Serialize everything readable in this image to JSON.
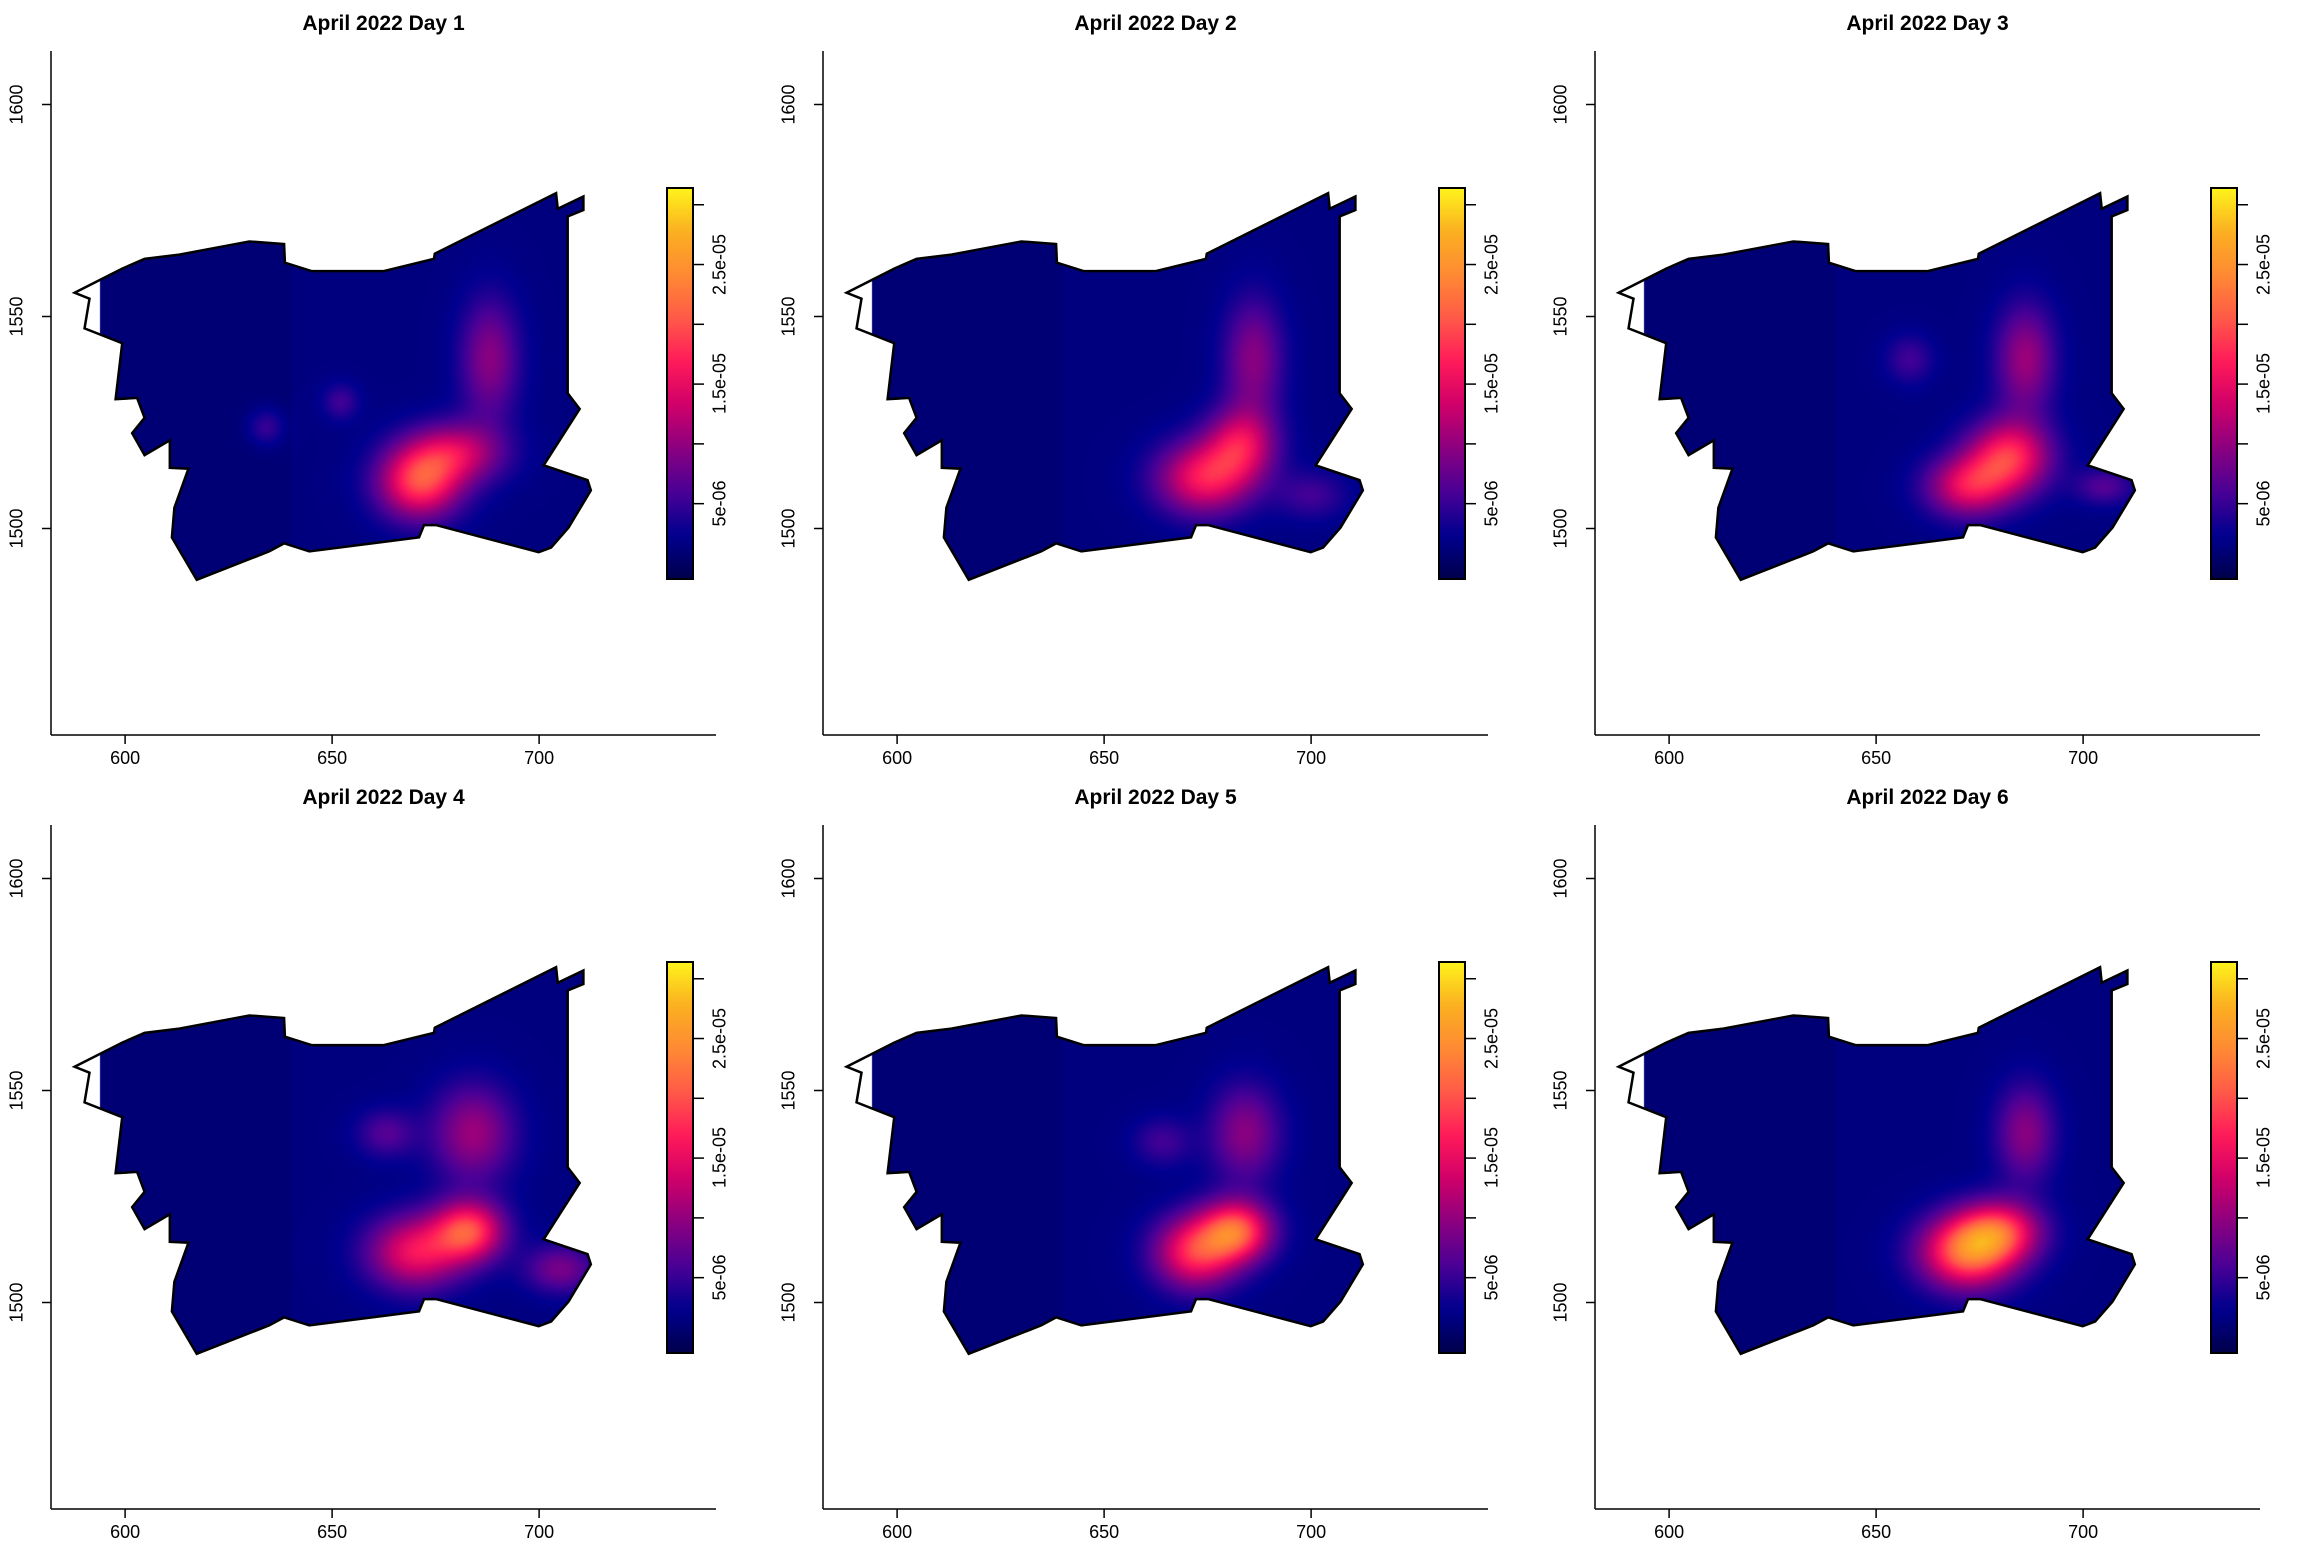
{
  "chart_data": [
    {
      "type": "heatmap",
      "title": "April 2022 Day 1",
      "hotspots": [
        [
          671,
          1511,
          1.7e-05,
          7,
          6
        ],
        [
          680,
          1518,
          1.1e-05,
          8,
          5
        ],
        [
          688,
          1540,
          8e-06,
          5,
          10
        ],
        [
          652,
          1530,
          4e-06,
          3,
          3
        ],
        [
          634,
          1524,
          4e-06,
          3,
          3
        ]
      ]
    },
    {
      "type": "heatmap",
      "title": "April 2022 Day 2",
      "hotspots": [
        [
          674,
          1512,
          1.45e-05,
          8,
          6
        ],
        [
          683,
          1520,
          1.2e-05,
          6,
          6
        ],
        [
          686,
          1540,
          8e-06,
          5,
          10
        ],
        [
          700,
          1508,
          4e-06,
          6,
          4
        ]
      ]
    },
    {
      "type": "heatmap",
      "title": "April 2022 Day 3",
      "hotspots": [
        [
          682,
          1517,
          1.6e-05,
          7,
          6
        ],
        [
          672,
          1510,
          1.3e-05,
          7,
          5
        ],
        [
          686,
          1540,
          9e-06,
          5,
          9
        ],
        [
          658,
          1540,
          4e-06,
          4,
          4
        ],
        [
          705,
          1510,
          5e-06,
          5,
          3
        ]
      ]
    },
    {
      "type": "heatmap",
      "title": "April 2022 Day 4",
      "hotspots": [
        [
          683,
          1517,
          1.7e-05,
          6,
          5
        ],
        [
          670,
          1512,
          1.4e-05,
          8,
          6
        ],
        [
          684,
          1540,
          9e-06,
          7,
          8
        ],
        [
          663,
          1540,
          5e-06,
          5,
          4
        ],
        [
          705,
          1508,
          7e-06,
          6,
          4
        ]
      ]
    },
    {
      "type": "heatmap",
      "title": "April 2022 Day 5",
      "hotspots": [
        [
          682,
          1517,
          1.8e-05,
          6,
          5
        ],
        [
          672,
          1512,
          1.6e-05,
          7,
          6
        ],
        [
          684,
          1540,
          8e-06,
          6,
          8
        ],
        [
          664,
          1538,
          4e-06,
          5,
          4
        ]
      ]
    },
    {
      "type": "heatmap",
      "title": "April 2022 Day 6",
      "hotspots": [
        [
          672,
          1512,
          2e-05,
          8,
          6
        ],
        [
          680,
          1517,
          1.4e-05,
          7,
          5
        ],
        [
          686,
          1540,
          8e-06,
          5,
          8
        ]
      ]
    }
  ],
  "shared": {
    "xlim": [
      582,
      743
    ],
    "ylim": [
      1451,
      1613
    ],
    "xticks": [
      "600",
      "650",
      "700"
    ],
    "xtick_values": [
      600,
      650,
      700
    ],
    "yticks": [
      "1500",
      "1550",
      "1600"
    ],
    "ytick_values": [
      1500,
      1550,
      1600
    ],
    "legend": {
      "placement": "right",
      "zlim": [
        -1.3e-06,
        3.14e-05
      ],
      "labels": [
        "5e-06",
        "1.5e-05",
        "2.5e-05"
      ],
      "label_values": [
        5e-06,
        1.5e-05,
        2.5e-05
      ],
      "tick_values": [
        5e-06,
        1e-05,
        1.5e-05,
        2e-05,
        2.5e-05,
        3e-05
      ]
    },
    "background_level": 1.5e-06,
    "palette": [
      "#00004a",
      "#00008f",
      "#4a0096",
      "#8a0080",
      "#d0006a",
      "#ff1a5a",
      "#ff5a48",
      "#ff8a34",
      "#fbb021",
      "#fff41c"
    ],
    "boundary": [
      [
        587.8,
        1555.6
      ],
      [
        591.4,
        1554.2
      ],
      [
        590.2,
        1547.2
      ],
      [
        599.3,
        1543.7
      ],
      [
        597.7,
        1530.5
      ],
      [
        602.9,
        1530.8
      ],
      [
        604.7,
        1526.1
      ],
      [
        601.7,
        1522.5
      ],
      [
        604.7,
        1517.3
      ],
      [
        610.8,
        1520.8
      ],
      [
        610.8,
        1514.3
      ],
      [
        615.3,
        1514.1
      ],
      [
        611.9,
        1504.9
      ],
      [
        611.3,
        1497.9
      ],
      [
        617.3,
        1487.9
      ],
      [
        634.8,
        1494.6
      ],
      [
        638.4,
        1496.5
      ],
      [
        644.5,
        1494.6
      ],
      [
        671.0,
        1497.9
      ],
      [
        672.2,
        1500.8
      ],
      [
        675.2,
        1500.8
      ],
      [
        699.9,
        1494.4
      ],
      [
        702.9,
        1495.5
      ],
      [
        707.1,
        1500.2
      ],
      [
        712.5,
        1509.0
      ],
      [
        711.7,
        1511.4
      ],
      [
        701.1,
        1514.9
      ],
      [
        709.8,
        1528.2
      ],
      [
        706.9,
        1531.9
      ],
      [
        706.9,
        1573.6
      ],
      [
        710.7,
        1575.1
      ],
      [
        710.7,
        1578.3
      ],
      [
        704.5,
        1575.4
      ],
      [
        704.1,
        1579.1
      ],
      [
        674.8,
        1564.8
      ],
      [
        674.6,
        1563.6
      ],
      [
        662.5,
        1560.7
      ],
      [
        645.1,
        1560.7
      ],
      [
        638.6,
        1562.7
      ],
      [
        638.4,
        1567.1
      ],
      [
        630.0,
        1567.7
      ],
      [
        613.1,
        1564.6
      ],
      [
        604.7,
        1563.6
      ],
      [
        599.3,
        1561.3
      ]
    ]
  }
}
